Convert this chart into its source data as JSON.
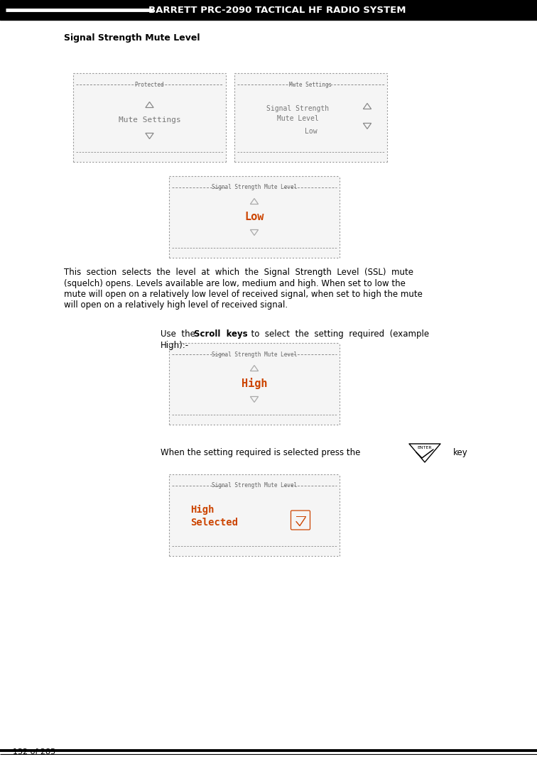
{
  "header_text": "BARRETT PRC-2090 TACTICAL HF RADIO SYSTEM",
  "header_bg": "#000000",
  "header_fg": "#ffffff",
  "page_bg": "#ffffff",
  "title": "Signal Strength Mute Level",
  "footer_text": "132 of 285",
  "body_lines": [
    "This  section  selects  the  level  at  which  the  Signal  Strength  Level  (SSL)  mute",
    "(squelch) opens. Levels available are low, medium and high. When set to low the",
    "mute will open on a relatively low level of received signal, when set to high the mute",
    "will open on a relatively high level of received signal."
  ],
  "scroll_line1_pre": "Use  the  ",
  "scroll_line1_bold": "Scroll  keys",
  "scroll_line1_post": "  to  select  the  setting  required  (example",
  "scroll_line2": "High):-",
  "enter_instruction": "When the setting required is selected press the",
  "enter_key_label": "key",
  "screen1_left_header": "Protected",
  "screen1_left_main": "Mute Settings",
  "screen1_right_header": "Mute Settings",
  "screen1_right_line1": "Signal Strength",
  "screen1_right_line2": "Mute Level",
  "screen1_right_value": "Low",
  "screen2_header": "Signal Strength Mute Level",
  "screen2_value": "Low",
  "screen3_header": "Signal Strength Mute Level",
  "screen3_value": "High",
  "screen4_header": "Signal Strength Mute Level",
  "screen4_line1": "High",
  "screen4_line2": "Selected",
  "dot_color": "#888888",
  "screen_bg": "#f5f5f5",
  "value_color_orange": "#cc4400",
  "border_color": "#999999"
}
